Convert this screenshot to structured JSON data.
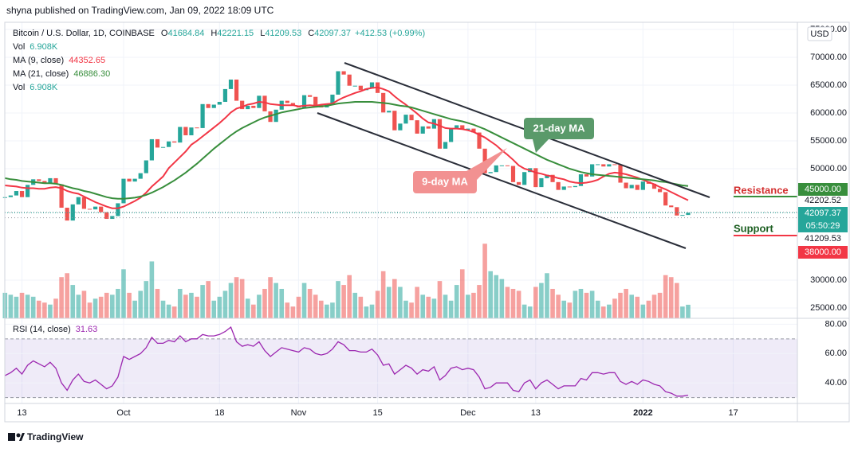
{
  "header": "shyna published on TradingView.com, Jan 09, 2022 18:09 UTC",
  "logo": "TradingView",
  "chart_data": {
    "type": "candlestick",
    "title": "Bitcoin / U.S. Dollar, 1D, COINBASE",
    "ohlc": [
      {
        "key": "O",
        "value": "41684.84"
      },
      {
        "key": "H",
        "value": "42221.15"
      },
      {
        "key": "L",
        "value": "41209.53"
      },
      {
        "key": "C",
        "value": "42097.37"
      }
    ],
    "change": "+412.53 (+0.99%)",
    "indicators": [
      {
        "name": "Vol",
        "value": "6.908K",
        "color": "#26a69a"
      },
      {
        "name": "MA (9, close)",
        "value": "44352.65",
        "color": "#f23645"
      },
      {
        "name": "MA (21, close)",
        "value": "46886.30",
        "color": "#388e3c"
      },
      {
        "name": "Vol",
        "value": "6.908K",
        "color": "#26a69a"
      }
    ],
    "currency": "USD",
    "categories": [
      null,
      null,
      null,
      "13",
      null,
      null,
      null,
      null,
      null,
      null,
      null,
      null,
      null,
      null,
      null,
      null,
      null,
      null,
      null,
      null,
      null,
      "Oct",
      null,
      null,
      null,
      null,
      null,
      null,
      null,
      null,
      null,
      null,
      null,
      null,
      null,
      null,
      null,
      null,
      "18",
      null,
      null,
      null,
      null,
      null,
      null,
      null,
      null,
      null,
      null,
      null,
      null,
      null,
      "Nov",
      null,
      null,
      null,
      null,
      null,
      null,
      null,
      null,
      null,
      null,
      null,
      null,
      null,
      "15",
      null,
      null,
      null,
      null,
      null,
      null,
      null,
      null,
      null,
      null,
      null,
      null,
      null,
      null,
      null,
      "Dec",
      null,
      null,
      null,
      null,
      null,
      null,
      null,
      null,
      null,
      null,
      null,
      "13",
      null,
      null,
      null,
      null,
      null,
      null,
      null,
      null,
      null,
      null,
      null,
      null,
      null,
      null,
      null,
      null,
      null,
      null,
      "2022",
      null,
      null,
      null,
      null,
      null,
      null,
      null,
      null,
      null,
      null,
      null,
      null,
      null,
      null,
      null,
      "17"
    ],
    "up_color": "#26a69a",
    "down_color": "#ef5350",
    "close": [
      44900,
      45200,
      46000,
      44900,
      47100,
      48100,
      47800,
      47300,
      48300,
      47200,
      43000,
      40700,
      43600,
      44900,
      42800,
      42700,
      43200,
      42200,
      41000,
      41500,
      43800,
      48200,
      47700,
      48200,
      49200,
      51500,
      55300,
      53800,
      53900,
      54900,
      54700,
      57500,
      56000,
      57400,
      57300,
      61600,
      60900,
      61500,
      62000,
      64300,
      66000,
      62200,
      60700,
      61300,
      60900,
      63100,
      60300,
      58400,
      60600,
      62200,
      61800,
      61300,
      61000,
      63200,
      62900,
      61400,
      61000,
      61500,
      63300,
      67500,
      66900,
      64900,
      64900,
      64100,
      64400,
      65500,
      63600,
      60100,
      60400,
      56900,
      58100,
      59700,
      58700,
      56300,
      57600,
      57200,
      58900,
      53600,
      54800,
      57300,
      57800,
      57000,
      57200,
      56500,
      53600,
      49200,
      49400,
      50600,
      50600,
      50500,
      47600,
      47100,
      49400,
      50100,
      46700,
      48300,
      48900,
      47600,
      46200,
      46800,
      46700,
      46900,
      49000,
      48600,
      50800,
      50800,
      50400,
      50800,
      50700,
      47500,
      46500,
      47100,
      46200,
      47700,
      47300,
      46400,
      45800,
      43400,
      43100,
      41600,
      41700,
      42097.37,
      null,
      null,
      null,
      null,
      null,
      null,
      null,
      null
    ],
    "volume": [
      13,
      12,
      11,
      13,
      12,
      11,
      9,
      8,
      7,
      10,
      21,
      23,
      17,
      12,
      14,
      8,
      10,
      11,
      13,
      12,
      15,
      25,
      13,
      9,
      14,
      19,
      29,
      15,
      9,
      7,
      6,
      15,
      12,
      13,
      11,
      17,
      19,
      9,
      11,
      14,
      18,
      21,
      20,
      10,
      7,
      12,
      15,
      21,
      18,
      15,
      8,
      6,
      11,
      18,
      15,
      12,
      9,
      7,
      8,
      19,
      17,
      22,
      13,
      11,
      6,
      7,
      14,
      24,
      16,
      20,
      16,
      9,
      8,
      16,
      12,
      11,
      10,
      19,
      12,
      9,
      17,
      25,
      12,
      13,
      17,
      38,
      24,
      22,
      20,
      16,
      15,
      14,
      7,
      6,
      16,
      18,
      23,
      15,
      12,
      9,
      8,
      14,
      15,
      13,
      14,
      9,
      6,
      7,
      10,
      13,
      15,
      12,
      11,
      7,
      9,
      12,
      13,
      22,
      21,
      18,
      6,
      6.908,
      null,
      null,
      null,
      null,
      null,
      null,
      null,
      null
    ],
    "volume_ylim": [
      0,
      150
    ],
    "ma_lines": [
      {
        "color": "#f23645",
        "values": [
          47000,
          46900,
          46800,
          46600,
          46500,
          46500,
          46400,
          46400,
          46600,
          46700,
          46500,
          46000,
          45700,
          45500,
          45000,
          44500,
          44000,
          43600,
          43200,
          42900,
          42900,
          43200,
          43700,
          44200,
          44800,
          45700,
          46800,
          47700,
          48600,
          50100,
          51100,
          52100,
          53100,
          54300,
          55000,
          55800,
          56600,
          57400,
          58200,
          59100,
          60100,
          60800,
          61100,
          61500,
          61700,
          62000,
          61900,
          61600,
          61500,
          61400,
          61400,
          61400,
          61200,
          61300,
          61400,
          61300,
          61500,
          61600,
          61700,
          62300,
          62800,
          63200,
          63600,
          63900,
          64300,
          64500,
          64600,
          64300,
          63900,
          63000,
          62200,
          61500,
          60700,
          59900,
          59000,
          58300,
          58100,
          57700,
          57300,
          57200,
          57200,
          57100,
          56900,
          56600,
          56100,
          55600,
          54900,
          54200,
          53300,
          52500,
          51600,
          50600,
          50000,
          49700,
          49300,
          49100,
          48800,
          48600,
          48300,
          48100,
          47700,
          47500,
          47400,
          47500,
          47700,
          48000,
          48600,
          49100,
          49300,
          49200,
          49000,
          48700,
          48400,
          48000,
          47600,
          47200,
          46700,
          46300,
          45800,
          45300,
          44800,
          44352.65,
          null,
          null,
          null,
          null,
          null,
          null,
          null,
          null
        ]
      },
      {
        "color": "#388e3c",
        "values": [
          48300,
          48100,
          48000,
          47800,
          47700,
          47600,
          47500,
          47400,
          47400,
          47300,
          47100,
          46800,
          46500,
          46300,
          46000,
          45800,
          45500,
          45200,
          44900,
          44700,
          44600,
          44600,
          44700,
          44800,
          45000,
          45300,
          45700,
          46200,
          46700,
          47300,
          47900,
          48600,
          49300,
          50100,
          50900,
          51800,
          52700,
          53600,
          54400,
          55200,
          56000,
          56700,
          57300,
          57800,
          58300,
          58800,
          59200,
          59500,
          59800,
          60100,
          60300,
          60500,
          60700,
          60900,
          61000,
          61100,
          61200,
          61300,
          61500,
          61700,
          61800,
          61900,
          62000,
          62000,
          62000,
          62000,
          61900,
          61800,
          61700,
          61500,
          61300,
          61200,
          61000,
          60700,
          60400,
          60100,
          59800,
          59500,
          59200,
          58900,
          58700,
          58500,
          58200,
          57900,
          57500,
          57100,
          56600,
          56100,
          55600,
          55100,
          54600,
          54100,
          53600,
          53100,
          52600,
          52100,
          51600,
          51200,
          50800,
          50400,
          50000,
          49700,
          49400,
          49200,
          49000,
          48900,
          48800,
          48700,
          48600,
          48500,
          48400,
          48300,
          48200,
          48100,
          48000,
          47900,
          47700,
          47600,
          47400,
          47200,
          47000,
          46886.3,
          null,
          null,
          null,
          null,
          null,
          null,
          null,
          null
        ]
      }
    ],
    "ylim": [
      23150,
      76000
    ],
    "yticks": [
      {
        "value": 25000,
        "label": "25000.00"
      },
      {
        "value": 30000,
        "label": "30000.00"
      },
      {
        "value": 50000,
        "label": "50000.00"
      },
      {
        "value": 55000,
        "label": "55000.00"
      },
      {
        "value": 60000,
        "label": "60000.00"
      },
      {
        "value": 65000,
        "label": "65000.00"
      },
      {
        "value": 70000,
        "label": "70000.00"
      },
      {
        "value": 75000,
        "label": "75000.00"
      }
    ],
    "grid": true,
    "price_markers": [
      {
        "value": 45000,
        "label": "45000.00",
        "color": "#388e3c"
      },
      {
        "value": 42202.52,
        "label": "42202.52"
      },
      {
        "value": 42097.37,
        "label": "42097.37",
        "color": "#26a69a",
        "countdown": "05:50:29"
      },
      {
        "value": 41209.53,
        "label": "41209.53"
      },
      {
        "value": 38000,
        "label": "38000.00",
        "color": "#f23645"
      }
    ],
    "annotations": [
      {
        "text": "21-day MA",
        "color": "#5a9a6a"
      },
      {
        "text": "9-day MA",
        "color": "#f29191"
      },
      {
        "text": "Resistance",
        "color": "#d32f2f"
      },
      {
        "text": "Support",
        "color": "#1b5e20"
      }
    ],
    "rsi": {
      "label": "RSI (14, close)",
      "value_label": "31.63",
      "color": "#9c27b0",
      "values": [
        45,
        47,
        50,
        46,
        52,
        55,
        53,
        51,
        54,
        50,
        40,
        35,
        42,
        46,
        41,
        40,
        42,
        39,
        36,
        38,
        44,
        58,
        56,
        58,
        60,
        64,
        71,
        67,
        67,
        69,
        68,
        72,
        68,
        70,
        70,
        73,
        72,
        72,
        73,
        75,
        78,
        68,
        65,
        66,
        65,
        68,
        62,
        58,
        61,
        64,
        63,
        62,
        61,
        64,
        63,
        60,
        59,
        60,
        63,
        68,
        66,
        62,
        62,
        61,
        61,
        63,
        59,
        52,
        53,
        46,
        49,
        52,
        50,
        46,
        49,
        48,
        51,
        42,
        45,
        50,
        51,
        49,
        50,
        49,
        44,
        36,
        37,
        40,
        40,
        40,
        35,
        34,
        40,
        42,
        36,
        40,
        42,
        39,
        36,
        38,
        38,
        38,
        43,
        42,
        47,
        47,
        46,
        47,
        47,
        41,
        39,
        41,
        39,
        42,
        41,
        39,
        38,
        34,
        33,
        31,
        31,
        31.63,
        null,
        null,
        null,
        null,
        null,
        null,
        null,
        null
      ],
      "ylim": [
        26,
        84
      ],
      "yticks": [
        {
          "value": 40,
          "label": "40.00"
        },
        {
          "value": 60,
          "label": "60.00"
        },
        {
          "value": 80,
          "label": "80.00"
        }
      ],
      "band": [
        30,
        70
      ]
    }
  }
}
